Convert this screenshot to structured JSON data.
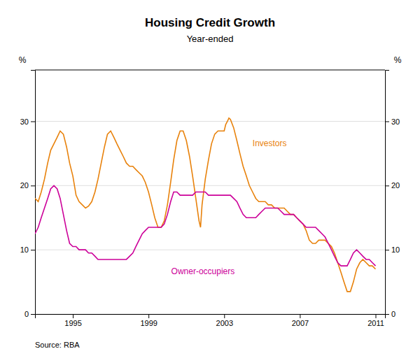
{
  "chart_data": {
    "type": "line",
    "title": "Housing Credit Growth",
    "subtitle": "Year-ended",
    "ylabel": "%",
    "y2label": "%",
    "source": "Source: RBA",
    "xlim": [
      1993.0,
      2011.5
    ],
    "xticks": [
      1995,
      1999,
      2003,
      2007,
      2011
    ],
    "ylim": [
      0,
      38
    ],
    "yticks": [
      0,
      10,
      20,
      30
    ],
    "y2lim": [
      0,
      38
    ],
    "y2ticks": [
      0,
      10,
      20,
      30
    ],
    "grid": "y",
    "annotations": [
      {
        "text": "Investors",
        "x": 2004.5,
        "y": 26.5,
        "color": "#E8820C"
      },
      {
        "text": "Owner-occupiers",
        "x": 2000.2,
        "y": 6.5,
        "color": "#CC0099"
      }
    ],
    "series": [
      {
        "color": "#E8820C",
        "x": [
          1993.0,
          1993.17,
          1993.33,
          1993.5,
          1993.67,
          1993.83,
          1994.0,
          1994.17,
          1994.33,
          1994.5,
          1994.67,
          1994.83,
          1995.0,
          1995.17,
          1995.33,
          1995.5,
          1995.67,
          1995.83,
          1996.0,
          1996.17,
          1996.33,
          1996.5,
          1996.67,
          1996.83,
          1997.0,
          1997.17,
          1997.33,
          1997.5,
          1997.67,
          1997.83,
          1998.0,
          1998.17,
          1998.33,
          1998.5,
          1998.67,
          1998.83,
          1999.0,
          1999.17,
          1999.33,
          1999.5,
          1999.67,
          1999.83,
          2000.0,
          2000.17,
          2000.33,
          2000.5,
          2000.67,
          2000.83,
          2001.0,
          2001.17,
          2001.33,
          2001.5,
          2001.67,
          2001.75,
          2001.83,
          2002.0,
          2002.17,
          2002.33,
          2002.5,
          2002.67,
          2002.83,
          2003.0,
          2003.08,
          2003.17,
          2003.25,
          2003.33,
          2003.5,
          2003.67,
          2003.83,
          2004.0,
          2004.17,
          2004.33,
          2004.5,
          2004.67,
          2004.83,
          2005.0,
          2005.17,
          2005.33,
          2005.5,
          2005.67,
          2005.83,
          2006.0,
          2006.17,
          2006.33,
          2006.5,
          2006.67,
          2006.83,
          2007.0,
          2007.17,
          2007.33,
          2007.5,
          2007.67,
          2007.83,
          2008.0,
          2008.17,
          2008.33,
          2008.5,
          2008.67,
          2008.83,
          2009.0,
          2009.17,
          2009.33,
          2009.5,
          2009.67,
          2009.83,
          2010.0,
          2010.17,
          2010.33,
          2010.5,
          2010.67,
          2010.83,
          2011.0
        ],
        "values": [
          18.0,
          17.5,
          19.0,
          21.0,
          23.5,
          25.5,
          26.5,
          27.5,
          28.5,
          28.0,
          26.0,
          23.5,
          21.5,
          18.5,
          17.5,
          17.0,
          16.5,
          16.8,
          17.5,
          19.0,
          21.0,
          23.5,
          26.0,
          28.0,
          28.5,
          27.5,
          26.5,
          25.5,
          24.5,
          23.5,
          23.0,
          23.0,
          22.5,
          22.0,
          21.5,
          20.5,
          19.0,
          17.0,
          15.0,
          13.5,
          13.5,
          14.5,
          17.0,
          20.5,
          24.0,
          27.0,
          28.5,
          28.5,
          27.0,
          24.5,
          21.5,
          18.0,
          14.5,
          13.5,
          17.0,
          21.0,
          24.0,
          26.5,
          28.0,
          28.5,
          28.5,
          28.5,
          29.5,
          30.0,
          30.5,
          30.3,
          29.0,
          27.0,
          25.0,
          23.0,
          21.5,
          20.0,
          19.0,
          18.0,
          17.5,
          17.5,
          17.5,
          17.0,
          17.0,
          16.5,
          16.5,
          16.5,
          16.5,
          16.0,
          15.5,
          15.5,
          15.0,
          14.5,
          14.0,
          13.0,
          11.5,
          11.0,
          11.0,
          11.5,
          11.5,
          11.5,
          11.0,
          10.5,
          9.5,
          8.0,
          6.5,
          5.0,
          3.5,
          3.5,
          5.0,
          7.0,
          8.0,
          8.5,
          8.0,
          7.5,
          7.5,
          7.0
        ]
      },
      {
        "color": "#CC0099",
        "x": [
          1993.0,
          1993.17,
          1993.33,
          1993.5,
          1993.67,
          1993.83,
          1994.0,
          1994.17,
          1994.33,
          1994.5,
          1994.67,
          1994.83,
          1995.0,
          1995.17,
          1995.33,
          1995.5,
          1995.67,
          1995.83,
          1996.0,
          1996.17,
          1996.33,
          1996.5,
          1996.67,
          1996.83,
          1997.0,
          1997.17,
          1997.33,
          1997.5,
          1997.67,
          1997.83,
          1998.0,
          1998.17,
          1998.33,
          1998.5,
          1998.67,
          1998.83,
          1999.0,
          1999.17,
          1999.33,
          1999.5,
          1999.67,
          1999.83,
          2000.0,
          2000.17,
          2000.33,
          2000.5,
          2000.67,
          2000.83,
          2001.0,
          2001.17,
          2001.33,
          2001.5,
          2001.67,
          2001.83,
          2002.0,
          2002.17,
          2002.33,
          2002.5,
          2002.67,
          2002.83,
          2003.0,
          2003.17,
          2003.33,
          2003.5,
          2003.67,
          2003.83,
          2004.0,
          2004.17,
          2004.33,
          2004.5,
          2004.67,
          2004.83,
          2005.0,
          2005.17,
          2005.33,
          2005.5,
          2005.67,
          2005.83,
          2006.0,
          2006.17,
          2006.33,
          2006.5,
          2006.67,
          2006.83,
          2007.0,
          2007.17,
          2007.33,
          2007.5,
          2007.67,
          2007.83,
          2008.0,
          2008.17,
          2008.33,
          2008.5,
          2008.67,
          2008.83,
          2009.0,
          2009.17,
          2009.33,
          2009.5,
          2009.67,
          2009.83,
          2010.0,
          2010.17,
          2010.33,
          2010.5,
          2010.67,
          2010.83,
          2011.0
        ],
        "values": [
          12.5,
          13.5,
          15.0,
          16.5,
          18.0,
          19.5,
          20.0,
          19.5,
          18.0,
          15.5,
          13.0,
          11.0,
          10.5,
          10.5,
          10.0,
          10.0,
          10.0,
          9.5,
          9.5,
          9.0,
          8.5,
          8.5,
          8.5,
          8.5,
          8.5,
          8.5,
          8.5,
          8.5,
          8.5,
          8.5,
          9.0,
          9.5,
          10.5,
          11.5,
          12.5,
          13.0,
          13.5,
          13.5,
          13.5,
          13.5,
          13.5,
          14.0,
          15.5,
          17.5,
          19.0,
          19.0,
          18.5,
          18.5,
          18.5,
          18.5,
          18.5,
          19.0,
          19.0,
          19.0,
          19.0,
          18.5,
          18.5,
          18.5,
          18.5,
          18.5,
          18.5,
          18.5,
          18.5,
          18.0,
          17.5,
          16.5,
          15.5,
          15.0,
          15.0,
          15.0,
          15.0,
          15.5,
          16.0,
          16.5,
          16.5,
          16.5,
          16.5,
          16.5,
          16.0,
          15.5,
          15.5,
          15.5,
          15.5,
          15.0,
          14.5,
          14.0,
          13.5,
          13.5,
          13.5,
          13.5,
          13.0,
          12.5,
          12.0,
          11.0,
          10.0,
          9.0,
          8.0,
          7.5,
          7.5,
          7.5,
          8.5,
          9.5,
          10.0,
          9.5,
          9.0,
          8.5,
          8.5,
          8.0,
          7.5
        ]
      }
    ]
  }
}
